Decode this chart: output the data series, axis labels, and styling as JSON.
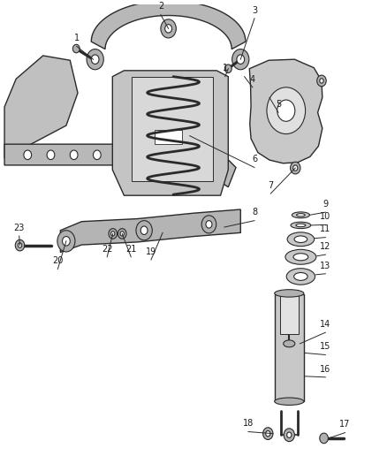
{
  "bg_color": "#ffffff",
  "line_color": "#2a2a2a",
  "fill_light": "#d0d0d0",
  "fill_mid": "#b0b0b0",
  "fill_dark": "#909090",
  "label_color": "#1a1a1a",
  "figwidth": 4.38,
  "figheight": 5.33,
  "dpi": 100
}
